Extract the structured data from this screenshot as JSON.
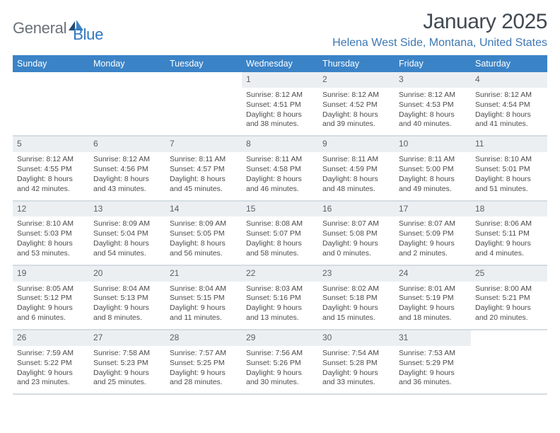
{
  "brand": {
    "part1": "General",
    "part2": "Blue"
  },
  "header": {
    "month_title": "January 2025",
    "location": "Helena West Side, Montana, United States"
  },
  "columns": [
    "Sunday",
    "Monday",
    "Tuesday",
    "Wednesday",
    "Thursday",
    "Friday",
    "Saturday"
  ],
  "colors": {
    "header_bg": "#3b83c7",
    "header_fg": "#ffffff",
    "daynum_bg": "#eceff2",
    "divider": "#d4dde4",
    "brand_gray": "#6a7279",
    "brand_blue": "#2f77bf",
    "title_color": "#414a52",
    "location_color": "#3e77b2",
    "text_color": "#4b4b4b"
  },
  "labels": {
    "sunrise": "Sunrise:",
    "sunset": "Sunset:",
    "daylight": "Daylight:"
  },
  "weeks": [
    [
      null,
      null,
      null,
      {
        "n": "1",
        "sunrise": "8:12 AM",
        "sunset": "4:51 PM",
        "day_h": "8",
        "day_m": "38"
      },
      {
        "n": "2",
        "sunrise": "8:12 AM",
        "sunset": "4:52 PM",
        "day_h": "8",
        "day_m": "39"
      },
      {
        "n": "3",
        "sunrise": "8:12 AM",
        "sunset": "4:53 PM",
        "day_h": "8",
        "day_m": "40"
      },
      {
        "n": "4",
        "sunrise": "8:12 AM",
        "sunset": "4:54 PM",
        "day_h": "8",
        "day_m": "41"
      }
    ],
    [
      {
        "n": "5",
        "sunrise": "8:12 AM",
        "sunset": "4:55 PM",
        "day_h": "8",
        "day_m": "42"
      },
      {
        "n": "6",
        "sunrise": "8:12 AM",
        "sunset": "4:56 PM",
        "day_h": "8",
        "day_m": "43"
      },
      {
        "n": "7",
        "sunrise": "8:11 AM",
        "sunset": "4:57 PM",
        "day_h": "8",
        "day_m": "45"
      },
      {
        "n": "8",
        "sunrise": "8:11 AM",
        "sunset": "4:58 PM",
        "day_h": "8",
        "day_m": "46"
      },
      {
        "n": "9",
        "sunrise": "8:11 AM",
        "sunset": "4:59 PM",
        "day_h": "8",
        "day_m": "48"
      },
      {
        "n": "10",
        "sunrise": "8:11 AM",
        "sunset": "5:00 PM",
        "day_h": "8",
        "day_m": "49"
      },
      {
        "n": "11",
        "sunrise": "8:10 AM",
        "sunset": "5:01 PM",
        "day_h": "8",
        "day_m": "51"
      }
    ],
    [
      {
        "n": "12",
        "sunrise": "8:10 AM",
        "sunset": "5:03 PM",
        "day_h": "8",
        "day_m": "53"
      },
      {
        "n": "13",
        "sunrise": "8:09 AM",
        "sunset": "5:04 PM",
        "day_h": "8",
        "day_m": "54"
      },
      {
        "n": "14",
        "sunrise": "8:09 AM",
        "sunset": "5:05 PM",
        "day_h": "8",
        "day_m": "56"
      },
      {
        "n": "15",
        "sunrise": "8:08 AM",
        "sunset": "5:07 PM",
        "day_h": "8",
        "day_m": "58"
      },
      {
        "n": "16",
        "sunrise": "8:07 AM",
        "sunset": "5:08 PM",
        "day_h": "9",
        "day_m": "0"
      },
      {
        "n": "17",
        "sunrise": "8:07 AM",
        "sunset": "5:09 PM",
        "day_h": "9",
        "day_m": "2"
      },
      {
        "n": "18",
        "sunrise": "8:06 AM",
        "sunset": "5:11 PM",
        "day_h": "9",
        "day_m": "4"
      }
    ],
    [
      {
        "n": "19",
        "sunrise": "8:05 AM",
        "sunset": "5:12 PM",
        "day_h": "9",
        "day_m": "6"
      },
      {
        "n": "20",
        "sunrise": "8:04 AM",
        "sunset": "5:13 PM",
        "day_h": "9",
        "day_m": "8"
      },
      {
        "n": "21",
        "sunrise": "8:04 AM",
        "sunset": "5:15 PM",
        "day_h": "9",
        "day_m": "11"
      },
      {
        "n": "22",
        "sunrise": "8:03 AM",
        "sunset": "5:16 PM",
        "day_h": "9",
        "day_m": "13"
      },
      {
        "n": "23",
        "sunrise": "8:02 AM",
        "sunset": "5:18 PM",
        "day_h": "9",
        "day_m": "15"
      },
      {
        "n": "24",
        "sunrise": "8:01 AM",
        "sunset": "5:19 PM",
        "day_h": "9",
        "day_m": "18"
      },
      {
        "n": "25",
        "sunrise": "8:00 AM",
        "sunset": "5:21 PM",
        "day_h": "9",
        "day_m": "20"
      }
    ],
    [
      {
        "n": "26",
        "sunrise": "7:59 AM",
        "sunset": "5:22 PM",
        "day_h": "9",
        "day_m": "23"
      },
      {
        "n": "27",
        "sunrise": "7:58 AM",
        "sunset": "5:23 PM",
        "day_h": "9",
        "day_m": "25"
      },
      {
        "n": "28",
        "sunrise": "7:57 AM",
        "sunset": "5:25 PM",
        "day_h": "9",
        "day_m": "28"
      },
      {
        "n": "29",
        "sunrise": "7:56 AM",
        "sunset": "5:26 PM",
        "day_h": "9",
        "day_m": "30"
      },
      {
        "n": "30",
        "sunrise": "7:54 AM",
        "sunset": "5:28 PM",
        "day_h": "9",
        "day_m": "33"
      },
      {
        "n": "31",
        "sunrise": "7:53 AM",
        "sunset": "5:29 PM",
        "day_h": "9",
        "day_m": "36"
      },
      null
    ]
  ]
}
